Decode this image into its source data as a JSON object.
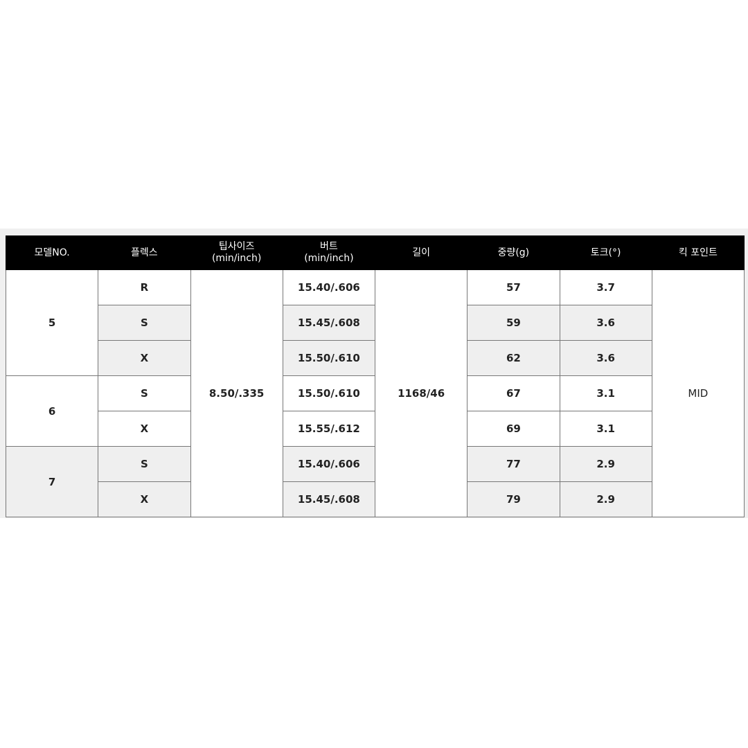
{
  "headers": [
    "모델NO.",
    "플렉스",
    "팁사이즈\n(min/inch)",
    "버트\n(min/inch)",
    "길이",
    "중량(g)",
    "토크(°)",
    "킥 포인트"
  ],
  "header_lines": {
    "tip": [
      "팁사이즈",
      "(min/inch)"
    ],
    "butt": [
      "버트",
      "(min/inch)"
    ]
  },
  "models": [
    "5",
    "6",
    "7"
  ],
  "tip_size": "8.50/.335",
  "length": "1168/46",
  "kick_point": "MID",
  "rows": [
    {
      "flex": "R",
      "butt": "15.40/.606",
      "weight": "57",
      "torque": "3.7"
    },
    {
      "flex": "S",
      "butt": "15.45/.608",
      "weight": "59",
      "torque": "3.6"
    },
    {
      "flex": "X",
      "butt": "15.50/.610",
      "weight": "62",
      "torque": "3.6"
    },
    {
      "flex": "S",
      "butt": "15.50/.610",
      "weight": "67",
      "torque": "3.1"
    },
    {
      "flex": "X",
      "butt": "15.55/.612",
      "weight": "69",
      "torque": "3.1"
    },
    {
      "flex": "S",
      "butt": "15.40/.606",
      "weight": "77",
      "torque": "2.9"
    },
    {
      "flex": "X",
      "butt": "15.45/.608",
      "weight": "79",
      "torque": "2.9"
    }
  ],
  "colors": {
    "header_bg": "#000000",
    "shade": "#efefef",
    "border": "#777777"
  }
}
